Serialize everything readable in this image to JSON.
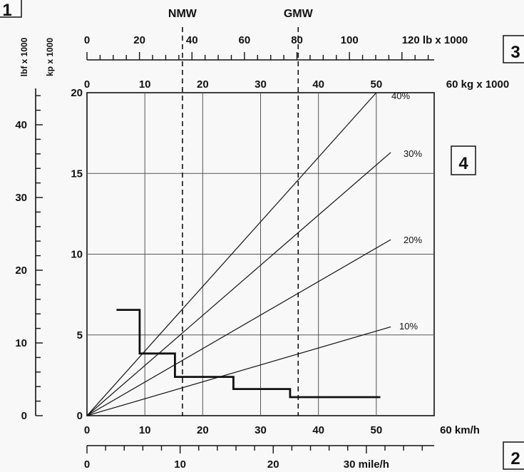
{
  "chart_data": {
    "type": "line",
    "title": "",
    "xlabel": "km/h",
    "ylabel": "kp x 1000",
    "xlim": [
      0,
      60
    ],
    "ylim": [
      0,
      20
    ],
    "grid": true,
    "x_ticks": [
      0,
      10,
      20,
      30,
      40,
      50,
      60
    ],
    "y_ticks": [
      0,
      5,
      10,
      15,
      20
    ],
    "panel_markers": [
      "1",
      "2",
      "3",
      "4"
    ],
    "axes": {
      "left_outer": {
        "label": "lbf x 1000",
        "ticks": [
          0,
          10,
          20,
          30,
          40
        ]
      },
      "left_inner": {
        "label": "kp x 1000",
        "ticks": [
          0,
          5,
          10,
          15,
          20
        ]
      },
      "bottom_primary": {
        "label": "60 km/h",
        "ticks": [
          "0",
          "10",
          "20",
          "30",
          "40",
          "50"
        ]
      },
      "bottom_secondary": {
        "label": "30 mile/h",
        "ticks": [
          "0",
          "10",
          "20"
        ]
      },
      "top_kg": {
        "label": "60 kg x 1000",
        "ticks": [
          "0",
          "10",
          "20",
          "30",
          "40",
          "50"
        ]
      },
      "top_lb": {
        "label": "120 lb x 1000",
        "ticks": [
          "0",
          "20",
          "40",
          "60",
          "80",
          "100"
        ]
      }
    },
    "reference_lines": [
      {
        "name": "NMW",
        "x": 16.5
      },
      {
        "name": "GMW",
        "x": 36.5
      }
    ],
    "grade_lines": [
      {
        "name": "40%",
        "x": [
          0,
          50
        ],
        "y": [
          0,
          20
        ]
      },
      {
        "name": "30%",
        "x": [
          0,
          52.5
        ],
        "y": [
          0,
          16.3
        ]
      },
      {
        "name": "20%",
        "x": [
          0,
          52.5
        ],
        "y": [
          0,
          10.9
        ]
      },
      {
        "name": "10%",
        "x": [
          0,
          52.5
        ],
        "y": [
          0,
          5.5
        ]
      }
    ],
    "tractive_effort": {
      "x": [
        5.1,
        9.1,
        9.1,
        15.2,
        15.2,
        25.3,
        25.3,
        35.1,
        35.1,
        50.7
      ],
      "y": [
        6.55,
        6.55,
        3.85,
        3.85,
        2.4,
        2.4,
        1.65,
        1.65,
        1.15,
        1.15
      ]
    }
  }
}
